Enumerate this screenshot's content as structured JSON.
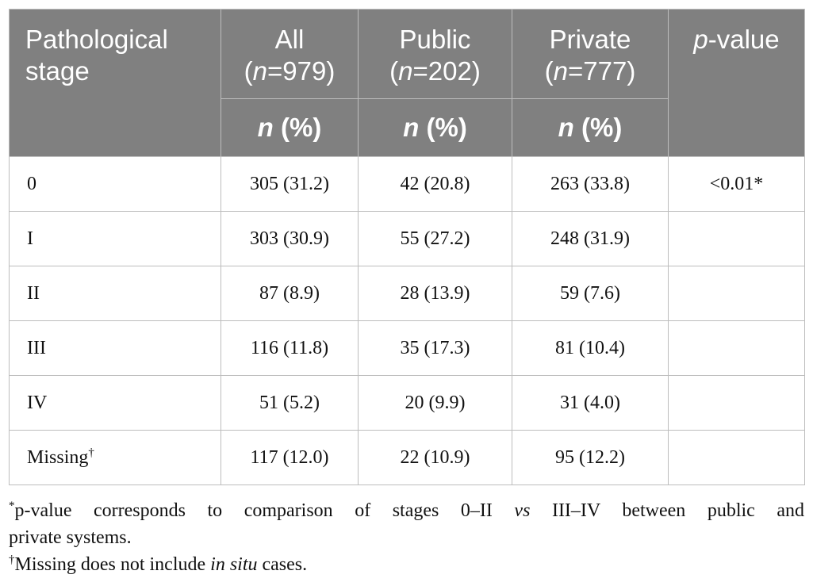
{
  "table": {
    "header": {
      "stage_line1": "Pathological",
      "stage_line2": "stage",
      "groups": [
        {
          "name": "All",
          "n_label": "n",
          "n_value": "=979)"
        },
        {
          "name": "Public",
          "n_label": "n",
          "n_value": "=202)"
        },
        {
          "name": "Private",
          "n_label": "n",
          "n_value": "=777)"
        }
      ],
      "pvalue_p": "p",
      "pvalue_rest": "-value",
      "subheader_n": "n",
      "subheader_pct": " (%)"
    },
    "rows": [
      {
        "stage": "0",
        "all": "305 (31.2)",
        "public": "42 (20.8)",
        "private": "263 (33.8)",
        "p": "<0.01*",
        "mark": ""
      },
      {
        "stage": "I",
        "all": "303 (30.9)",
        "public": "55 (27.2)",
        "private": "248 (31.9)",
        "p": "",
        "mark": ""
      },
      {
        "stage": "II",
        "all": "87 (8.9)",
        "public": "28 (13.9)",
        "private": "59 (7.6)",
        "p": "",
        "mark": ""
      },
      {
        "stage": "III",
        "all": "116 (11.8)",
        "public": "35 (17.3)",
        "private": "81 (10.4)",
        "p": "",
        "mark": ""
      },
      {
        "stage": "IV",
        "all": "51 (5.2)",
        "public": "20 (9.9)",
        "private": "31 (4.0)",
        "p": "",
        "mark": ""
      },
      {
        "stage": "Missing",
        "all": "117 (12.0)",
        "public": "22 (10.9)",
        "private": "95 (12.2)",
        "p": "",
        "mark": "†"
      }
    ]
  },
  "footnotes": {
    "fn1_mark": "*",
    "fn1_line1_a": "p-value corresponds to comparison of stages 0–II ",
    "fn1_line1_vs": "vs",
    "fn1_line1_b": " III–IV between public and",
    "fn1_line2": "private systems.",
    "fn2_mark": "†",
    "fn2_a": "Missing does not include ",
    "fn2_italic": "in situ",
    "fn2_b": " cases."
  }
}
